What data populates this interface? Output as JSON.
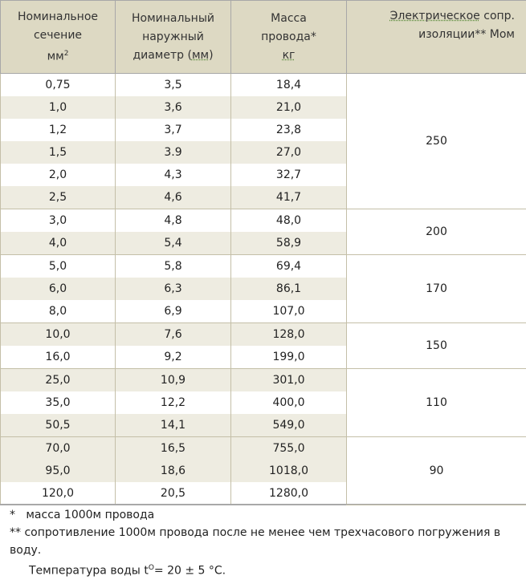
{
  "headers": {
    "col1": [
      "Номинальное",
      "сечение",
      "мм",
      "2"
    ],
    "col2": [
      "Номинальный",
      "наружный",
      "диаметр (",
      "мм",
      ")"
    ],
    "col3": [
      "Масса",
      "провода*",
      "кг"
    ],
    "col4": [
      "Электрическое",
      " сопр.",
      "изоляции** Мом"
    ]
  },
  "rows": [
    [
      "0,75",
      "3,5",
      "18,4"
    ],
    [
      "1,0",
      "3,6",
      "21,0"
    ],
    [
      "1,2",
      "3,7",
      "23,8"
    ],
    [
      "1,5",
      "3.9",
      "27,0"
    ],
    [
      "2,0",
      "4,3",
      "32,7"
    ],
    [
      "2,5",
      "4,6",
      "41,7"
    ],
    [
      "3,0",
      "4,8",
      "48,0"
    ],
    [
      "4,0",
      "5,4",
      "58,9"
    ],
    [
      "5,0",
      "5,8",
      "69,4"
    ],
    [
      "6,0",
      "6,3",
      "86,1"
    ],
    [
      "8,0",
      "6,9",
      "107,0"
    ],
    [
      "10,0",
      "7,6",
      "128,0"
    ],
    [
      "16,0",
      "9,2",
      "199,0"
    ],
    [
      "25,0",
      "10,9",
      "301,0"
    ],
    [
      "35,0",
      "12,2",
      "400,0"
    ],
    [
      "50,5",
      "14,1",
      "549,0"
    ],
    [
      "70,0",
      "16,5",
      "755,0"
    ],
    [
      "95,0",
      "18,6",
      "1018,0"
    ],
    [
      "120,0",
      "20,5",
      "1280,0"
    ]
  ],
  "resistance_groups": [
    "250",
    "200",
    "170",
    "150",
    "110",
    "90"
  ],
  "notes": {
    "n1_mark": "*",
    "n1_text": "масса 1000м провода",
    "n2_mark": "**",
    "n2_text": "сопротивление 1000м провода после не менее чем трехчасового погружения в воду.",
    "n3_text": "Температура воды t",
    "n3_sup": "O",
    "n3_rest": "= 20 ± 5 °C."
  },
  "colors": {
    "header_bg": "#ddd9c3",
    "shaded_row": "#eeece1",
    "border": "#c4bfa8"
  }
}
